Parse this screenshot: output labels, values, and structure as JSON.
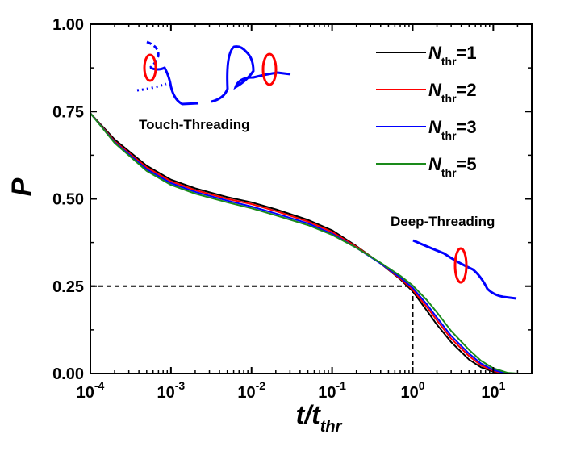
{
  "chart_data": {
    "type": "line",
    "xlabel": {
      "main": "t/t",
      "sub": "thr"
    },
    "ylabel": "P",
    "x_scale": "log",
    "xlim": [
      0.0001,
      30
    ],
    "ylim": [
      0,
      1
    ],
    "x_ticks": [
      {
        "value": 0.0001,
        "base": "10",
        "exp": "-4"
      },
      {
        "value": 0.001,
        "base": "10",
        "exp": "-3"
      },
      {
        "value": 0.01,
        "base": "10",
        "exp": "-2"
      },
      {
        "value": 0.1,
        "base": "10",
        "exp": "-1"
      },
      {
        "value": 1,
        "base": "10",
        "exp": "0"
      },
      {
        "value": 10,
        "base": "10",
        "exp": "1"
      }
    ],
    "y_ticks": [
      {
        "value": 0,
        "label": "0.00"
      },
      {
        "value": 0.25,
        "label": "0.25"
      },
      {
        "value": 0.5,
        "label": "0.50"
      },
      {
        "value": 0.75,
        "label": "0.75"
      },
      {
        "value": 1,
        "label": "1.00"
      }
    ],
    "grid": false,
    "legend_position": "top-right",
    "series": [
      {
        "name": "N_thr=1",
        "label_main": "N",
        "label_sub": "thr",
        "label_value": "=1",
        "color": "#000000",
        "x": [
          0.0001,
          0.0002,
          0.0005,
          0.001,
          0.002,
          0.005,
          0.01,
          0.02,
          0.05,
          0.1,
          0.2,
          0.4,
          0.7,
          1,
          1.5,
          2,
          3,
          5,
          7,
          10,
          15
        ],
        "y": [
          0.745,
          0.67,
          0.595,
          0.555,
          0.53,
          0.505,
          0.49,
          0.47,
          0.44,
          0.41,
          0.365,
          0.315,
          0.27,
          0.235,
          0.18,
          0.14,
          0.09,
          0.04,
          0.018,
          0.005,
          0.0
        ]
      },
      {
        "name": "N_thr=2",
        "label_main": "N",
        "label_sub": "thr",
        "label_value": "=2",
        "color": "#ff0000",
        "x": [
          0.0001,
          0.0002,
          0.0005,
          0.001,
          0.002,
          0.005,
          0.01,
          0.02,
          0.05,
          0.1,
          0.2,
          0.4,
          0.7,
          1,
          1.5,
          2,
          3,
          5,
          7,
          10,
          15
        ],
        "y": [
          0.745,
          0.665,
          0.59,
          0.55,
          0.525,
          0.5,
          0.485,
          0.465,
          0.435,
          0.405,
          0.363,
          0.315,
          0.272,
          0.24,
          0.19,
          0.152,
          0.1,
          0.05,
          0.024,
          0.007,
          0.0
        ]
      },
      {
        "name": "N_thr=3",
        "label_main": "N",
        "label_sub": "thr",
        "label_value": "=3",
        "color": "#0000ff",
        "x": [
          0.0001,
          0.0002,
          0.0005,
          0.001,
          0.002,
          0.005,
          0.01,
          0.02,
          0.05,
          0.1,
          0.2,
          0.4,
          0.7,
          1,
          1.5,
          2,
          3,
          5,
          7,
          10,
          15
        ],
        "y": [
          0.745,
          0.662,
          0.585,
          0.545,
          0.52,
          0.495,
          0.478,
          0.458,
          0.43,
          0.4,
          0.36,
          0.315,
          0.275,
          0.245,
          0.198,
          0.16,
          0.108,
          0.057,
          0.029,
          0.01,
          0.0
        ]
      },
      {
        "name": "N_thr=5",
        "label_main": "N",
        "label_sub": "thr",
        "label_value": "=5",
        "color": "#1a8a1a",
        "x": [
          0.0001,
          0.0002,
          0.0005,
          0.001,
          0.002,
          0.005,
          0.01,
          0.02,
          0.05,
          0.1,
          0.2,
          0.4,
          0.7,
          1,
          1.5,
          2,
          3,
          5,
          7,
          10,
          15,
          20
        ],
        "y": [
          0.745,
          0.66,
          0.58,
          0.54,
          0.515,
          0.49,
          0.473,
          0.453,
          0.425,
          0.397,
          0.36,
          0.317,
          0.28,
          0.252,
          0.21,
          0.175,
          0.122,
          0.068,
          0.037,
          0.015,
          0.002,
          0.0
        ]
      }
    ],
    "reference_lines": {
      "horizontal": {
        "y": 0.25,
        "x_from": 0.0001,
        "x_to": 1
      },
      "vertical": {
        "x": 1,
        "y_from": 0,
        "y_to": 0.25
      }
    },
    "annotations": [
      {
        "text": "Touch-Threading"
      },
      {
        "text": "Deep-Threading"
      }
    ]
  }
}
